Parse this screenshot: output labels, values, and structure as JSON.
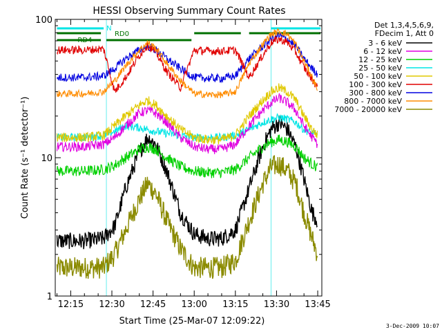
{
  "chart_data": {
    "type": "line",
    "title": "HESSI Observing Summary Count Rates",
    "xlabel": "Start Time (25-Mar-07 12:09:22)",
    "ylabel": "Count Rate (s⁻¹ detector⁻¹)",
    "y_scale": "log",
    "ylim": [
      1,
      100
    ],
    "xlim": [
      "12:09:22",
      "13:46:30"
    ],
    "grid": false,
    "x_ticks": [
      "12:15",
      "12:30",
      "12:45",
      "13:00",
      "13:15",
      "13:30",
      "13:45"
    ],
    "y_ticks": [
      "1",
      "10",
      "100"
    ],
    "legend_position": "top-right",
    "legend_header": [
      "Det 1,3,4,5,6,9,",
      "FDecim 1, Att 0"
    ],
    "footer_date": "3-Dec-2009 10:07",
    "flags": [
      {
        "label": "N",
        "color": "#00e5e5"
      },
      {
        "label": "RD0",
        "color": "#007000"
      },
      {
        "label": "RD4",
        "color": "#007000"
      }
    ],
    "series": [
      {
        "name": "3 - 6 keV",
        "color": "#000000",
        "x": [
          "12:10",
          "12:20",
          "12:27",
          "12:31",
          "12:35",
          "12:40",
          "12:43",
          "12:46",
          "12:50",
          "12:55",
          "13:00",
          "13:05",
          "13:10",
          "13:15",
          "13:20",
          "13:25",
          "13:28",
          "13:31",
          "13:34",
          "13:37",
          "13:40",
          "13:43",
          "13:45"
        ],
        "y": [
          2.5,
          2.5,
          2.6,
          3.2,
          6,
          11,
          14,
          12.5,
          8,
          4,
          2.8,
          2.6,
          2.6,
          3,
          6,
          12,
          16,
          18,
          16,
          12,
          7,
          4,
          3.5
        ]
      },
      {
        "name": "6 - 12 keV",
        "color": "#e000e0",
        "x": [
          "12:10",
          "12:20",
          "12:27",
          "12:31",
          "12:35",
          "12:40",
          "12:43",
          "12:46",
          "12:50",
          "12:55",
          "13:00",
          "13:05",
          "13:10",
          "13:15",
          "13:20",
          "13:25",
          "13:28",
          "13:31",
          "13:34",
          "13:37",
          "13:40",
          "13:43",
          "13:45"
        ],
        "y": [
          12,
          12,
          12.5,
          14,
          17,
          21,
          22,
          21,
          18,
          14,
          12,
          11.5,
          11.5,
          12.5,
          17,
          22,
          25,
          27,
          25,
          22,
          17,
          14,
          12.5
        ]
      },
      {
        "name": "12 - 25 keV",
        "color": "#00d000",
        "x": [
          "12:10",
          "12:20",
          "12:27",
          "12:31",
          "12:35",
          "12:40",
          "12:43",
          "12:46",
          "12:50",
          "12:55",
          "13:00",
          "13:05",
          "13:10",
          "13:15",
          "13:20",
          "13:25",
          "13:28",
          "13:31",
          "13:34",
          "13:37",
          "13:40",
          "13:43",
          "13:45"
        ],
        "y": [
          8,
          8,
          8.2,
          8.8,
          10,
          11.5,
          12,
          11.5,
          10,
          8.6,
          8,
          7.8,
          7.8,
          8.2,
          10,
          12,
          13,
          13.5,
          13,
          12,
          10,
          9,
          8.5
        ]
      },
      {
        "name": "25 - 50 keV",
        "color": "#00e5e5",
        "x": [
          "12:10",
          "12:20",
          "12:27",
          "12:31",
          "12:35",
          "12:40",
          "12:43",
          "12:46",
          "12:50",
          "12:55",
          "13:00",
          "13:05",
          "13:10",
          "13:15",
          "13:20",
          "13:25",
          "13:28",
          "13:31",
          "13:34",
          "13:37",
          "13:40",
          "13:43",
          "13:45"
        ],
        "y": [
          14,
          14,
          14.5,
          15.5,
          17,
          16.5,
          16,
          15.5,
          15,
          14.5,
          14,
          14,
          14,
          14.5,
          16,
          18,
          19,
          19.5,
          19,
          18,
          16,
          15,
          14.5
        ]
      },
      {
        "name": "50 - 100 keV",
        "color": "#e0c800",
        "x": [
          "12:10",
          "12:20",
          "12:27",
          "12:31",
          "12:35",
          "12:40",
          "12:43",
          "12:46",
          "12:50",
          "12:55",
          "13:00",
          "13:05",
          "13:10",
          "13:15",
          "13:20",
          "13:25",
          "13:28",
          "13:31",
          "13:34",
          "13:37",
          "13:40",
          "13:43",
          "13:45"
        ],
        "y": [
          14,
          14,
          14.5,
          17,
          20,
          24,
          26,
          24,
          20,
          16,
          14,
          13.5,
          13.5,
          14.5,
          20,
          26,
          30,
          32,
          30,
          26,
          20,
          16,
          14.5
        ]
      },
      {
        "name": "100 - 300 keV",
        "color": "#e00000",
        "x": [
          "12:10",
          "12:20",
          "12:27",
          "12:31",
          "12:35",
          "12:40",
          "12:43",
          "12:46",
          "12:50",
          "12:55",
          "13:00",
          "13:05",
          "13:10",
          "13:15",
          "13:20",
          "13:25",
          "13:28",
          "13:31",
          "13:34",
          "13:37",
          "13:40",
          "13:43",
          "13:45"
        ],
        "y": [
          60,
          60,
          61,
          30,
          38,
          55,
          65,
          58,
          42,
          32,
          60,
          59,
          59,
          60,
          38,
          55,
          68,
          72,
          68,
          58,
          45,
          37,
          32
        ]
      },
      {
        "name": "300 - 800 keV",
        "color": "#0000e0",
        "x": [
          "12:10",
          "12:20",
          "12:27",
          "12:31",
          "12:35",
          "12:40",
          "12:43",
          "12:46",
          "12:50",
          "12:55",
          "13:00",
          "13:05",
          "13:10",
          "13:15",
          "13:20",
          "13:25",
          "13:28",
          "13:31",
          "13:34",
          "13:37",
          "13:40",
          "13:43",
          "13:45"
        ],
        "y": [
          38,
          38,
          39,
          44,
          52,
          60,
          64,
          60,
          52,
          44,
          38,
          37.5,
          37.5,
          39,
          52,
          64,
          72,
          76,
          72,
          64,
          52,
          44,
          40
        ]
      },
      {
        "name": "800 - 7000 keV",
        "color": "#ff8c00",
        "x": [
          "12:10",
          "12:20",
          "12:27",
          "12:31",
          "12:35",
          "12:40",
          "12:43",
          "12:46",
          "12:50",
          "12:55",
          "13:00",
          "13:05",
          "13:10",
          "13:15",
          "13:20",
          "13:25",
          "13:28",
          "13:31",
          "13:34",
          "13:37",
          "13:40",
          "13:43",
          "13:45"
        ],
        "y": [
          29,
          29,
          30,
          36,
          46,
          60,
          68,
          62,
          48,
          36,
          29,
          28.5,
          28.5,
          30,
          48,
          66,
          78,
          82,
          78,
          66,
          50,
          38,
          31
        ]
      },
      {
        "name": "7000 - 20000 keV",
        "color": "#8b8b00",
        "x": [
          "12:10",
          "12:20",
          "12:27",
          "12:31",
          "12:35",
          "12:40",
          "12:43",
          "12:46",
          "12:50",
          "12:55",
          "13:00",
          "13:05",
          "13:10",
          "13:15",
          "13:20",
          "13:25",
          "13:28",
          "13:31",
          "13:34",
          "13:37",
          "13:40",
          "13:43",
          "13:45"
        ],
        "y": [
          1.6,
          1.6,
          1.6,
          2,
          3,
          5,
          6.5,
          5.5,
          3.5,
          2.2,
          1.6,
          1.6,
          1.6,
          1.8,
          3.5,
          6.5,
          8.5,
          9,
          8,
          6.5,
          4,
          2.6,
          2
        ]
      }
    ]
  }
}
